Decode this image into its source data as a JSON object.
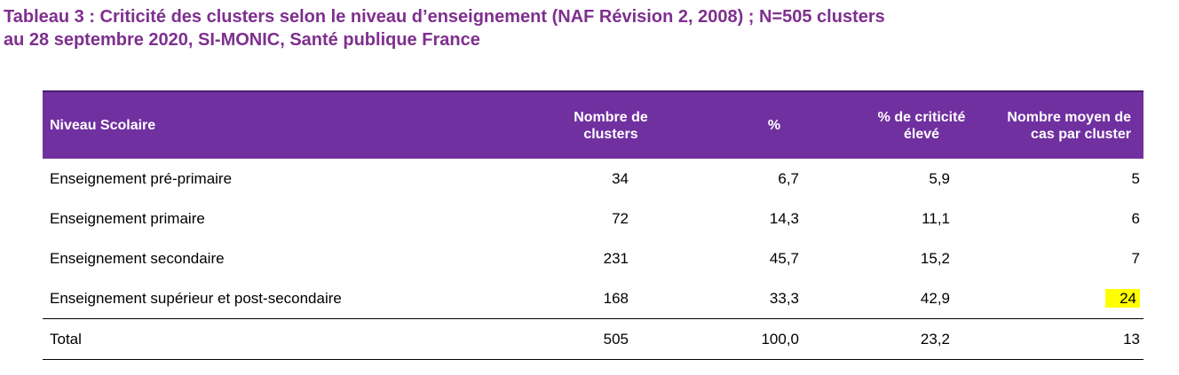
{
  "title": {
    "line1": "Tableau 3 : Criticité des clusters selon le niveau d’enseignement (NAF Révision 2, 2008) ; N=505 clusters",
    "line2": "au 28 septembre 2020, SI-MONIC, Santé publique France"
  },
  "table": {
    "headers": {
      "name": "Niveau Scolaire",
      "count_l1": "Nombre de",
      "count_l2": "clusters",
      "pct": "%",
      "crit_l1": "% de criticité",
      "crit_l2": "élevé",
      "avg_l1": "Nombre moyen de",
      "avg_l2": "cas par cluster"
    },
    "rows": [
      {
        "name": "Enseignement pré-primaire",
        "count": "34",
        "pct": "6,7",
        "crit": "5,9",
        "avg": "5"
      },
      {
        "name": "Enseignement primaire",
        "count": "72",
        "pct": "14,3",
        "crit": "11,1",
        "avg": "6"
      },
      {
        "name": "Enseignement secondaire",
        "count": "231",
        "pct": "45,7",
        "crit": "15,2",
        "avg": "7"
      },
      {
        "name": "Enseignement supérieur et post-secondaire",
        "count": "168",
        "pct": "33,3",
        "crit": "42,9",
        "avg": "24"
      }
    ],
    "total": {
      "name": "Total",
      "count": "505",
      "pct": "100,0",
      "crit": "23,2",
      "avg": "13"
    },
    "highlight_color": "#ffff00",
    "header_color": "#7030a0"
  }
}
